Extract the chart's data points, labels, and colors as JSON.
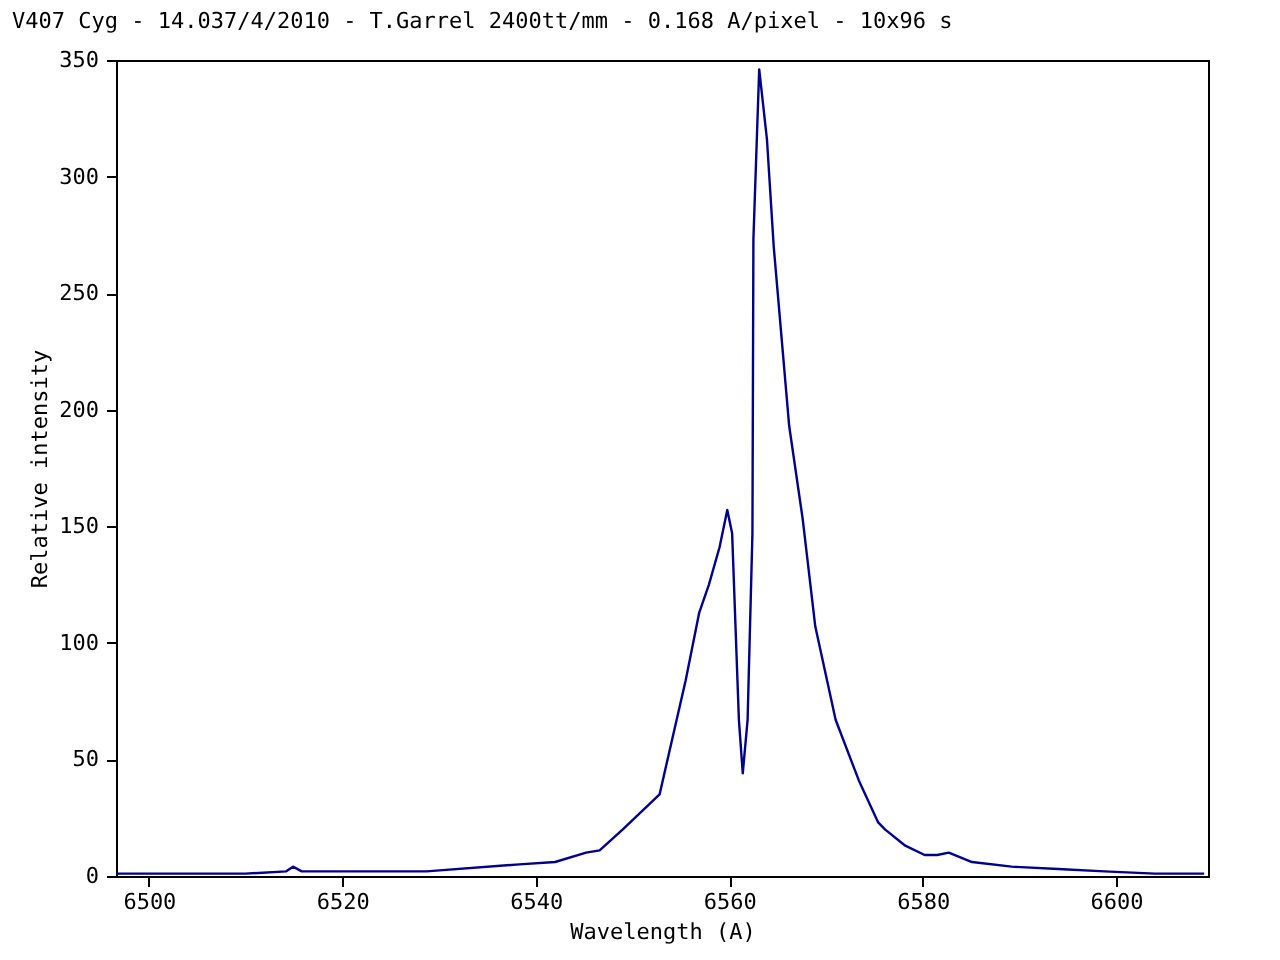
{
  "chart_data": {
    "type": "line",
    "title": "V407 Cyg - 14.037/4/2010 - T.Garrel 2400tt/mm - 0.168 A/pixel - 10x96 s",
    "xlabel": "Wavelength (A)",
    "ylabel": "Relative intensity",
    "x": [
      6496.6,
      6505,
      6510,
      6514.2,
      6514.9,
      6515.8,
      6520,
      6528.7,
      6538.3,
      6542,
      6545.2,
      6546.6,
      6549,
      6552.8,
      6555.5,
      6556.9,
      6557.9,
      6559.0,
      6559.8,
      6560.3,
      6561.0,
      6561.4,
      6561.9,
      6562.4,
      6562.5,
      6563.1,
      6563.9,
      6564.6,
      6566.2,
      6567.6,
      6568.9,
      6571.0,
      6573.4,
      6575.4,
      6576.1,
      6578.2,
      6580.2,
      6581.5,
      6582.7,
      6585.1,
      6589.2,
      6594,
      6598.8,
      6604,
      6609.1
    ],
    "series": [
      {
        "color": "#00008b",
        "values": [
          1,
          1,
          1,
          2,
          4,
          2,
          2,
          2,
          5,
          6,
          10,
          11,
          20,
          35,
          84,
          113,
          125,
          141,
          157,
          147,
          67,
          44,
          67,
          147,
          273,
          346,
          316,
          270,
          193,
          153,
          107,
          67,
          41,
          23,
          20,
          13,
          9,
          9,
          10,
          6,
          4,
          3,
          2,
          1,
          1
        ]
      }
    ],
    "xlim": [
      6496.6,
      6609.5
    ],
    "xticks": [
      6500,
      6520,
      6540,
      6560,
      6580,
      6600
    ],
    "ylim": [
      0,
      350
    ],
    "yticks": [
      0,
      50,
      100,
      150,
      200,
      250,
      300,
      350
    ],
    "grid": false,
    "marker": "none",
    "line_style": "solid"
  }
}
